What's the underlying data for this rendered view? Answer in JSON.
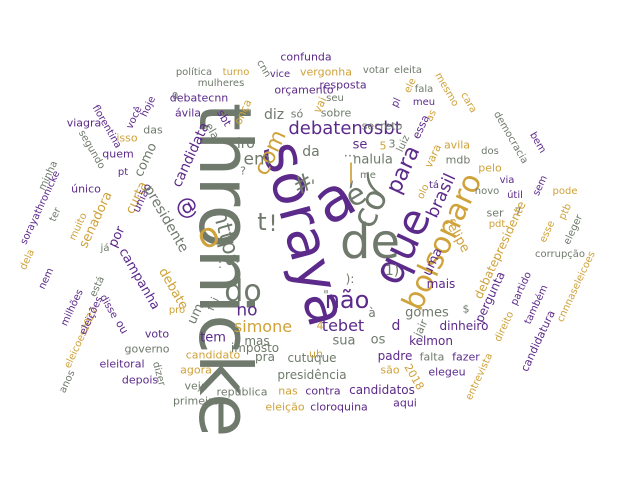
{
  "colors": {
    "gray": "#6f7a6c",
    "purple": "#5c2a8a",
    "gold": "#cfa23a"
  },
  "words": [
    {
      "text": "thronicke",
      "color": "gray"
    },
    {
      "text": "soraya",
      "color": "purple"
    },
    {
      "text": "de",
      "color": "gray"
    },
    {
      "text": "que",
      "color": "purple"
    },
    {
      "text": "a",
      "color": "purple"
    },
    {
      "text": "é",
      "color": "gray"
    },
    {
      "text": "(",
      "color": "gray"
    },
    {
      "text": "co",
      "color": "gray"
    },
    {
      "text": "para",
      "color": "purple"
    },
    {
      "text": "bolsonaro",
      "color": "gold"
    },
    {
      "text": "não",
      "color": "purple"
    },
    {
      "text": "do",
      "color": "gray"
    },
    {
      "text": "com",
      "color": "gold"
    },
    {
      "text": "em",
      "color": "gray"
    },
    {
      "text": "#",
      "color": "gray"
    },
    {
      "text": "@",
      "color": "purple"
    },
    {
      "text": "o",
      "color": "gold"
    },
    {
      "text": "https",
      "color": "gray"
    },
    {
      "text": "t",
      "color": "gray"
    },
    {
      "text": "debatenosbt",
      "color": "purple"
    },
    {
      "text": "tebet",
      "color": "purple"
    },
    {
      "text": "simone",
      "color": "gold"
    },
    {
      "text": "no",
      "color": "purple"
    },
    {
      "text": "da",
      "color": "gray"
    },
    {
      "text": "ciro",
      "color": "gray"
    },
    {
      "text": "nalula",
      "color": "gray"
    },
    {
      "text": "brasil",
      "color": "purple"
    },
    {
      "text": "uma",
      "color": "purple"
    },
    {
      "text": "diz",
      "color": "gray"
    },
    {
      "text": "se",
      "color": "purple"
    },
    {
      "text": "5",
      "color": "gold"
    },
    {
      "text": "3",
      "color": "gray"
    },
    {
      "text": "candidata",
      "color": "purple"
    },
    {
      "text": "como",
      "color": "gray"
    },
    {
      "text": "curta",
      "color": "gold"
    },
    {
      "text": "união",
      "color": "purple"
    },
    {
      "text": "presidente",
      "color": "gray"
    },
    {
      "text": "debate",
      "color": "gold"
    },
    {
      "text": "por",
      "color": "purple"
    },
    {
      "text": "um",
      "color": "gray"
    },
    {
      "text": "foi",
      "color": "gray"
    },
    {
      "text": "campanha",
      "color": "purple"
    },
    {
      "text": "senadora",
      "color": "gold"
    },
    {
      "text": "gomes",
      "color": "gray"
    },
    {
      "text": "$",
      "color": "gray"
    },
    {
      "text": "mais",
      "color": "purple"
    },
    {
      "text": "sua",
      "color": "gray"
    },
    {
      "text": "os",
      "color": "gray"
    },
    {
      "text": "tem",
      "color": "purple"
    },
    {
      "text": "mas",
      "color": "gray"
    },
    {
      "text": "pra",
      "color": "gray"
    },
    {
      "text": "imposto",
      "color": "gray"
    },
    {
      "text": "cutuque",
      "color": "gray"
    },
    {
      "text": "presidência",
      "color": "gray"
    },
    {
      "text": "padre",
      "color": "purple"
    },
    {
      "text": "falta",
      "color": "gray"
    },
    {
      "text": "fazer",
      "color": "purple"
    },
    {
      "text": "kelmon",
      "color": "purple"
    },
    {
      "text": "dinheiro",
      "color": "purple"
    },
    {
      "text": "jair",
      "color": "gray"
    },
    {
      "text": "são",
      "color": "gold"
    },
    {
      "text": "2018",
      "color": "gold"
    },
    {
      "text": "elegeu",
      "color": "purple"
    },
    {
      "text": "candidatos",
      "color": "purple"
    },
    {
      "text": "contra",
      "color": "purple"
    },
    {
      "text": "nas",
      "color": "gold"
    },
    {
      "text": "república",
      "color": "gray"
    },
    {
      "text": "veja",
      "color": "gray"
    },
    {
      "text": "primeiro",
      "color": "gray"
    },
    {
      "text": "eleição",
      "color": "gold"
    },
    {
      "text": "cloroquina",
      "color": "purple"
    },
    {
      "text": "aqui",
      "color": "purple"
    },
    {
      "text": "agora",
      "color": "gold"
    },
    {
      "text": "candidato",
      "color": "gold"
    },
    {
      "text": "governo",
      "color": "gray"
    },
    {
      "text": "voto",
      "color": "purple"
    },
    {
      "text": "pro",
      "color": "gold"
    },
    {
      "text": "dizer",
      "color": "gray"
    },
    {
      "text": "depois",
      "color": "purple"
    },
    {
      "text": "eleitoral",
      "color": "purple"
    },
    {
      "text": "ou",
      "color": "purple"
    },
    {
      "text": "anos",
      "color": "gray"
    },
    {
      "text": "eleicoes2022",
      "color": "gold"
    },
    {
      "text": "milhões",
      "color": "purple"
    },
    {
      "text": "eleições",
      "color": "purple"
    },
    {
      "text": "disse",
      "color": "purple"
    },
    {
      "text": "nem",
      "color": "purple"
    },
    {
      "text": "dela",
      "color": "gold"
    },
    {
      "text": "sorayathronicke",
      "color": "purple"
    },
    {
      "text": "ter",
      "color": "gray"
    },
    {
      "text": "muito",
      "color": "gold"
    },
    {
      "text": "está",
      "color": "gray"
    },
    {
      "text": "já",
      "color": "gray"
    },
    {
      "text": "único",
      "color": "purple"
    },
    {
      "text": "minha",
      "color": "gray"
    },
    {
      "text": "segundo",
      "color": "gray"
    },
    {
      "text": "quem",
      "color": "purple"
    },
    {
      "text": "isso",
      "color": "gold"
    },
    {
      "text": "das",
      "color": "gray"
    },
    {
      "text": "viagra",
      "color": "purple"
    },
    {
      "text": "florentina",
      "color": "purple"
    },
    {
      "text": "hoje",
      "color": "purple"
    },
    {
      "text": "você",
      "color": "purple"
    },
    {
      "text": "0",
      "color": "gray"
    },
    {
      "text": "debatecnn",
      "color": "purple"
    },
    {
      "text": "ávila",
      "color": "purple"
    },
    {
      "text": "sbt",
      "color": "purple"
    },
    {
      "text": "ela",
      "color": "gray"
    },
    {
      "text": "política",
      "color": "gray"
    },
    {
      "text": "turno",
      "color": "gold"
    },
    {
      "text": "mulheres",
      "color": "gray"
    },
    {
      "text": "cnn",
      "color": "gray"
    },
    {
      "text": "confunda",
      "color": "purple"
    },
    {
      "text": "vice",
      "color": "purple"
    },
    {
      "text": "vergonha",
      "color": "gold"
    },
    {
      "text": "votar",
      "color": "gray"
    },
    {
      "text": "eleita",
      "color": "gray"
    },
    {
      "text": "resposta",
      "color": "purple"
    },
    {
      "text": "orçamento",
      "color": "purple"
    },
    {
      "text": "seu",
      "color": "gray"
    },
    {
      "text": "sobre",
      "color": "gray"
    },
    {
      "text": "só",
      "color": "gray"
    },
    {
      "text": "vai",
      "color": "gold"
    },
    {
      "text": "onça",
      "color": "gold"
    },
    {
      "text": "secreto",
      "color": "gray"
    },
    {
      "text": "essa",
      "color": "purple"
    },
    {
      "text": "pl",
      "color": "purple"
    },
    {
      "text": "ele",
      "color": "gold"
    },
    {
      "text": "luiz",
      "color": "gray"
    },
    {
      "text": "as",
      "color": "gold"
    },
    {
      "text": "vara",
      "color": "gold"
    },
    {
      "text": "olo",
      "color": "gold"
    },
    {
      "text": "mdb",
      "color": "gray"
    },
    {
      "text": "avila",
      "color": "gold"
    },
    {
      "text": "meu",
      "color": "purple"
    },
    {
      "text": "fala",
      "color": "gray"
    },
    {
      "text": "mesmo",
      "color": "gold"
    },
    {
      "text": "cara",
      "color": "gold"
    },
    {
      "text": "democracia",
      "color": "gray"
    },
    {
      "text": "dos",
      "color": "gray"
    },
    {
      "text": "pelo",
      "color": "gold"
    },
    {
      "text": "via",
      "color": "purple"
    },
    {
      "text": "tá",
      "color": "purple"
    },
    {
      "text": "útil",
      "color": "purple"
    },
    {
      "text": "bem",
      "color": "purple"
    },
    {
      "text": "sem",
      "color": "purple"
    },
    {
      "text": "pode",
      "color": "gold"
    },
    {
      "text": "felipe",
      "color": "gold"
    },
    {
      "text": "ser",
      "color": "gray"
    },
    {
      "text": "7",
      "color": "gray"
    },
    {
      "text": "pdt",
      "color": "gold"
    },
    {
      "text": "debatepresidente",
      "color": "gold"
    },
    {
      "text": "esse",
      "color": "gold"
    },
    {
      "text": "ptb",
      "color": "gold"
    },
    {
      "text": "eleger",
      "color": "gray"
    },
    {
      "text": "pergunta",
      "color": "purple"
    },
    {
      "text": "partido",
      "color": "purple"
    },
    {
      "text": "corrupção",
      "color": "gray"
    },
    {
      "text": "cnnnaseleicoes",
      "color": "gold"
    },
    {
      "text": "direito",
      "color": "gold"
    },
    {
      "text": "também",
      "color": "purple"
    },
    {
      "text": "candidatura",
      "color": "purple"
    },
    {
      "text": "entrevista",
      "color": "gold"
    },
    {
      "text": "me",
      "color": "gray"
    },
    {
      "text": "1)",
      "color": "gray"
    },
    {
      "text": "?",
      "color": "gray"
    },
    {
      "text": "d",
      "color": "purple"
    },
    {
      "text": "4",
      "color": "gold"
    },
    {
      "text": "novo",
      "color": "gray"
    },
    {
      "text": "pt",
      "color": "purple"
    },
    {
      "text": "uh",
      "color": "gold"
    },
    {
      "text": "à",
      "color": "gray"
    },
    {
      "text": "|",
      "color": "gold"
    },
    {
      "text": "!",
      "color": "gray"
    },
    {
      "text": "...",
      "color": "gray"
    },
    {
      "text": "\"",
      "color": "gray"
    },
    {
      "text": ":",
      "color": "gray"
    },
    {
      "text": "):",
      "color": "gray"
    },
    {
      "text": "'",
      "color": "gray"
    }
  ]
}
